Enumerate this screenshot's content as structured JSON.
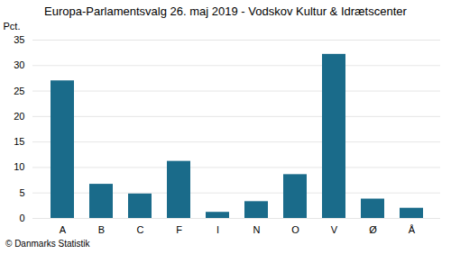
{
  "chart_data": {
    "type": "bar",
    "title": "Europa-Parlamentsvalg 26. maj 2019 - Vodskov Kultur & Idrætscenter",
    "ylabel": "Pct.",
    "caption": "© Danmarks Statistik",
    "categories": [
      "A",
      "B",
      "C",
      "F",
      "I",
      "N",
      "O",
      "V",
      "Ø",
      "Å"
    ],
    "values": [
      27.0,
      6.7,
      4.8,
      11.2,
      1.2,
      3.3,
      8.6,
      32.2,
      3.8,
      2.0
    ],
    "color": "#1a6b8a",
    "ylim": [
      0,
      35
    ],
    "yticks": [
      0,
      5,
      10,
      15,
      20,
      25,
      30,
      35
    ],
    "grid": true
  }
}
